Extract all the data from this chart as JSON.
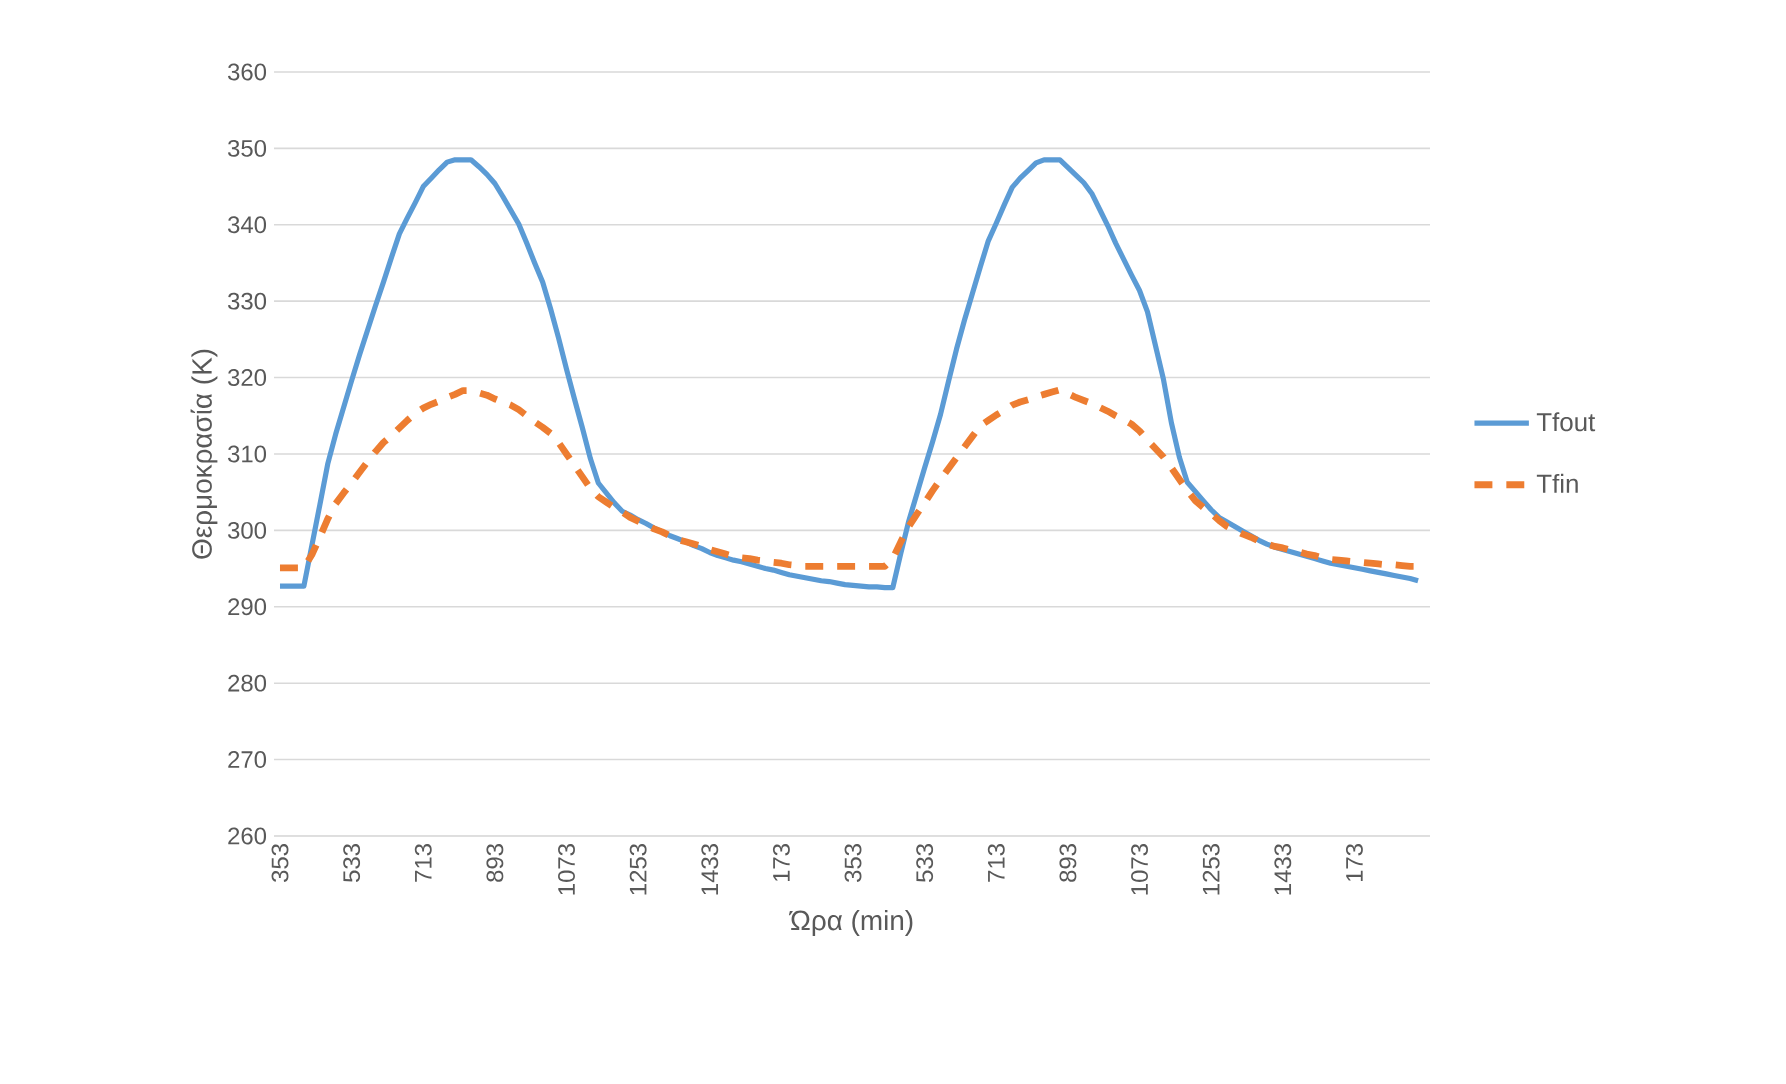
{
  "chart_data": {
    "type": "line",
    "xlabel": "Ώρα (min)",
    "ylabel": "Θερμοκρασία (K)",
    "categories": [
      "353",
      null,
      null,
      null,
      null,
      null,
      null,
      null,
      null,
      "533",
      null,
      null,
      null,
      null,
      null,
      null,
      null,
      null,
      "713",
      null,
      null,
      null,
      null,
      null,
      null,
      null,
      null,
      "893",
      null,
      null,
      null,
      null,
      null,
      null,
      null,
      null,
      "1073",
      null,
      null,
      null,
      null,
      null,
      null,
      null,
      null,
      "1253",
      null,
      null,
      null,
      null,
      null,
      null,
      null,
      null,
      "1433",
      null,
      null,
      null,
      null,
      null,
      null,
      null,
      null,
      "173",
      null,
      null,
      null,
      null,
      null,
      null,
      null,
      null,
      "353",
      null,
      null,
      null,
      null,
      null,
      null,
      null,
      null,
      "533",
      null,
      null,
      null,
      null,
      null,
      null,
      null,
      null,
      "713",
      null,
      null,
      null,
      null,
      null,
      null,
      null,
      null,
      "893",
      null,
      null,
      null,
      null,
      null,
      null,
      null,
      null,
      "1073",
      null,
      null,
      null,
      null,
      null,
      null,
      null,
      null,
      "1253",
      null,
      null,
      null,
      null,
      null,
      null,
      null,
      null,
      "1433",
      null,
      null,
      null,
      null,
      null,
      null,
      null,
      null,
      "173",
      null,
      null,
      null,
      null,
      null,
      null,
      null,
      null
    ],
    "series": [
      {
        "name": "Tfout",
        "color": "#5b9bd5",
        "line_style": "solid",
        "values": [
          292.7,
          292.7,
          292.7,
          292.7,
          298,
          303.3,
          308.7,
          312.6,
          316.1,
          319.6,
          323,
          326.2,
          329.4,
          332.5,
          335.7,
          338.8,
          340.9,
          342.9,
          345,
          346.1,
          347.2,
          348.2,
          348.5,
          348.5,
          348.5,
          347.6,
          346.6,
          345.4,
          343.7,
          341.9,
          340.1,
          337.6,
          335,
          332.5,
          329,
          325.2,
          321.1,
          317.2,
          313.4,
          309.4,
          306.2,
          304.9,
          303.6,
          302.5,
          302,
          301.4,
          300.9,
          300.3,
          299.8,
          299.3,
          298.9,
          298.5,
          298,
          297.6,
          297.1,
          296.7,
          296.4,
          296.1,
          295.9,
          295.6,
          295.3,
          295,
          294.8,
          294.5,
          294.2,
          294,
          293.8,
          293.6,
          293.4,
          293.3,
          293.1,
          292.9,
          292.8,
          292.7,
          292.6,
          292.6,
          292.5,
          292.5,
          297,
          301.2,
          304.7,
          308.2,
          311.6,
          315.2,
          319.5,
          323.7,
          327.5,
          331,
          334.5,
          337.9,
          340.2,
          342.6,
          344.9,
          346.1,
          347.1,
          348.1,
          348.5,
          348.5,
          348.5,
          347.5,
          346.5,
          345.5,
          344.1,
          342,
          339.9,
          337.6,
          335.5,
          333.4,
          331.4,
          328.6,
          324.2,
          319.8,
          314.1,
          309.6,
          306.3,
          305.1,
          303.9,
          302.7,
          301.7,
          301.1,
          300.5,
          299.9,
          299.3,
          298.7,
          298.2,
          297.8,
          297.5,
          297.2,
          296.9,
          296.6,
          296.3,
          296,
          295.7,
          295.5,
          295.3,
          295.1,
          294.9,
          294.7,
          294.5,
          294.3,
          294.1,
          293.9,
          293.7,
          293.4
        ]
      },
      {
        "name": "Tfin",
        "color": "#ed7d31",
        "line_style": "dashed",
        "values": [
          295.1,
          295.1,
          295.1,
          295.1,
          296.8,
          299.1,
          301.5,
          303.5,
          304.9,
          306.2,
          307.6,
          309,
          310.3,
          311.5,
          312.4,
          313.4,
          314.4,
          315.3,
          316,
          316.5,
          316.9,
          317.4,
          317.8,
          318.3,
          318.3,
          318,
          317.7,
          317.2,
          316.8,
          316.4,
          315.8,
          315,
          314.2,
          313.5,
          312.7,
          311.5,
          310,
          308.5,
          307,
          305.5,
          304.4,
          303.7,
          303,
          302.4,
          301.7,
          301.2,
          300.7,
          300.2,
          299.8,
          299.3,
          298.8,
          298.5,
          298.2,
          297.9,
          297.5,
          297.2,
          296.9,
          296.6,
          296.4,
          296.3,
          296.1,
          296,
          295.8,
          295.7,
          295.5,
          295.4,
          295.3,
          295.3,
          295.3,
          295.3,
          295.3,
          295.3,
          295.3,
          295.3,
          295.3,
          295.3,
          295.3,
          296.3,
          298.5,
          300.5,
          302.1,
          303.6,
          305.2,
          306.7,
          308.1,
          309.5,
          310.9,
          312.3,
          313.7,
          314.4,
          315.1,
          315.7,
          316.4,
          316.8,
          317.1,
          317.5,
          317.8,
          318.1,
          318.4,
          317.9,
          317.4,
          317,
          316.6,
          316.1,
          315.6,
          315,
          314.5,
          313.9,
          313,
          311.8,
          310.7,
          309.6,
          308.2,
          306.7,
          305.2,
          303.9,
          303,
          302.2,
          301.3,
          300.5,
          300,
          299.5,
          299.1,
          298.6,
          298.2,
          297.9,
          297.7,
          297.4,
          297.2,
          296.9,
          296.7,
          296.4,
          296.2,
          296.1,
          296,
          295.9,
          295.8,
          295.7,
          295.6,
          295.5,
          295.5,
          295.4,
          295.3,
          295.3
        ]
      }
    ],
    "ylim": [
      260,
      360
    ],
    "yticks": [
      260,
      270,
      280,
      290,
      300,
      310,
      320,
      330,
      340,
      350,
      360
    ],
    "grid": "y",
    "legend": "right"
  }
}
